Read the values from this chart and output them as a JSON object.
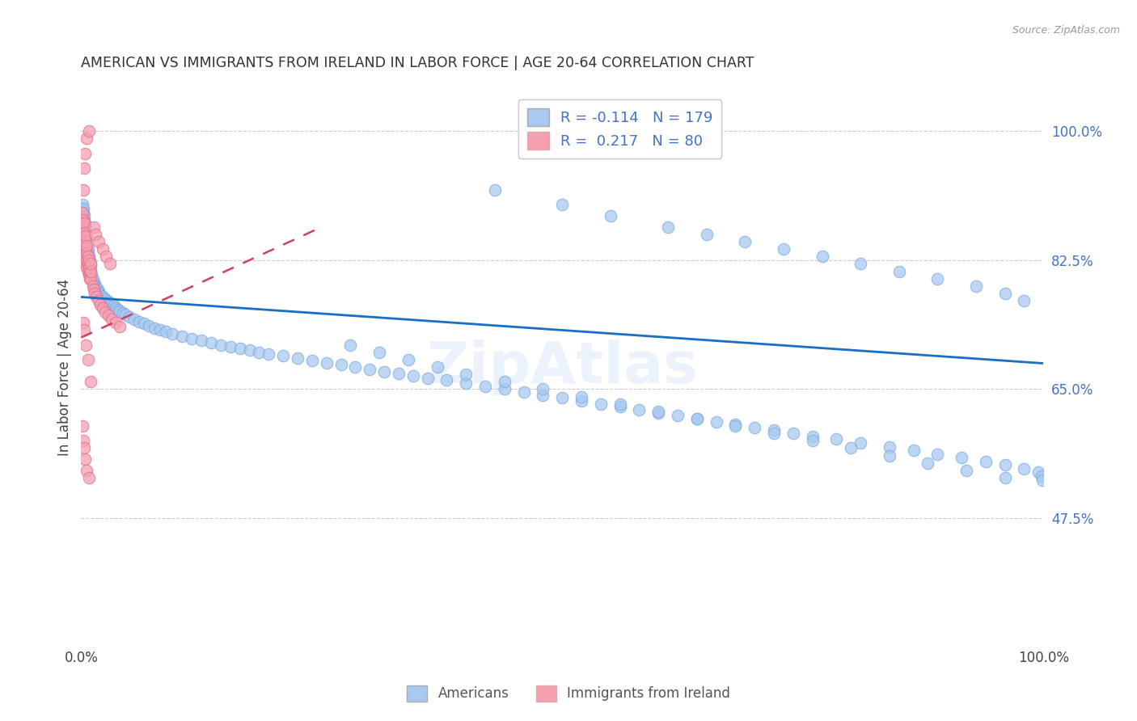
{
  "title": "AMERICAN VS IMMIGRANTS FROM IRELAND IN LABOR FORCE | AGE 20-64 CORRELATION CHART",
  "source": "Source: ZipAtlas.com",
  "ylabel": "In Labor Force | Age 20-64",
  "xlim": [
    0.0,
    1.0
  ],
  "ylim": [
    0.3,
    1.06
  ],
  "yticks": [
    0.475,
    0.65,
    0.825,
    1.0
  ],
  "ytick_labels": [
    "47.5%",
    "65.0%",
    "82.5%",
    "100.0%"
  ],
  "xtick_labels": [
    "0.0%",
    "100.0%"
  ],
  "R_american": -0.114,
  "N_american": 179,
  "R_ireland": 0.217,
  "N_ireland": 80,
  "american_color": "#a8c8f0",
  "ireland_color": "#f4a0b0",
  "trend_american_color": "#1a6fc4",
  "trend_ireland_color": "#d04060",
  "watermark": "ZipAtlas",
  "trend_american_x0": 0.0,
  "trend_american_y0": 0.775,
  "trend_american_x1": 1.0,
  "trend_american_y1": 0.685,
  "trend_ireland_x0": 0.0,
  "trend_ireland_y0": 0.72,
  "trend_ireland_x1": 0.25,
  "trend_ireland_y1": 0.87,
  "american_scatter_x": [
    0.001,
    0.001,
    0.001,
    0.001,
    0.001,
    0.001,
    0.001,
    0.001,
    0.001,
    0.001,
    0.002,
    0.002,
    0.002,
    0.002,
    0.002,
    0.002,
    0.002,
    0.002,
    0.002,
    0.003,
    0.003,
    0.003,
    0.003,
    0.003,
    0.003,
    0.003,
    0.003,
    0.004,
    0.004,
    0.004,
    0.004,
    0.004,
    0.004,
    0.004,
    0.005,
    0.005,
    0.005,
    0.005,
    0.005,
    0.005,
    0.006,
    0.006,
    0.006,
    0.006,
    0.006,
    0.007,
    0.007,
    0.007,
    0.007,
    0.007,
    0.008,
    0.008,
    0.008,
    0.008,
    0.009,
    0.009,
    0.009,
    0.009,
    0.01,
    0.01,
    0.01,
    0.011,
    0.012,
    0.013,
    0.014,
    0.015,
    0.016,
    0.017,
    0.018,
    0.019,
    0.02,
    0.022,
    0.024,
    0.026,
    0.028,
    0.03,
    0.032,
    0.034,
    0.036,
    0.038,
    0.04,
    0.043,
    0.046,
    0.05,
    0.055,
    0.06,
    0.065,
    0.07,
    0.076,
    0.082,
    0.088,
    0.095,
    0.105,
    0.115,
    0.125,
    0.135,
    0.145,
    0.155,
    0.165,
    0.175,
    0.185,
    0.195,
    0.21,
    0.225,
    0.24,
    0.255,
    0.27,
    0.285,
    0.3,
    0.315,
    0.33,
    0.345,
    0.36,
    0.38,
    0.4,
    0.42,
    0.44,
    0.46,
    0.48,
    0.5,
    0.52,
    0.54,
    0.56,
    0.58,
    0.6,
    0.62,
    0.64,
    0.66,
    0.68,
    0.7,
    0.72,
    0.74,
    0.76,
    0.785,
    0.81,
    0.84,
    0.865,
    0.89,
    0.915,
    0.94,
    0.96,
    0.98,
    0.995,
    0.998,
    0.999,
    0.43,
    0.5,
    0.55,
    0.61,
    0.65,
    0.69,
    0.73,
    0.77,
    0.81,
    0.85,
    0.89,
    0.93,
    0.96,
    0.98,
    0.28,
    0.31,
    0.34,
    0.37,
    0.4,
    0.44,
    0.48,
    0.52,
    0.56,
    0.6,
    0.64,
    0.68,
    0.72,
    0.76,
    0.8,
    0.84,
    0.88,
    0.92,
    0.96
  ],
  "american_scatter_y": [
    0.855,
    0.86,
    0.865,
    0.87,
    0.875,
    0.88,
    0.885,
    0.89,
    0.895,
    0.9,
    0.855,
    0.86,
    0.865,
    0.87,
    0.875,
    0.88,
    0.885,
    0.89,
    0.895,
    0.84,
    0.845,
    0.855,
    0.86,
    0.865,
    0.875,
    0.88,
    0.885,
    0.835,
    0.84,
    0.845,
    0.855,
    0.86,
    0.87,
    0.875,
    0.83,
    0.835,
    0.84,
    0.845,
    0.85,
    0.855,
    0.825,
    0.83,
    0.835,
    0.84,
    0.845,
    0.82,
    0.825,
    0.83,
    0.835,
    0.84,
    0.815,
    0.82,
    0.825,
    0.83,
    0.81,
    0.815,
    0.82,
    0.825,
    0.808,
    0.812,
    0.818,
    0.805,
    0.8,
    0.795,
    0.792,
    0.79,
    0.788,
    0.785,
    0.782,
    0.78,
    0.778,
    0.775,
    0.773,
    0.771,
    0.769,
    0.767,
    0.765,
    0.763,
    0.76,
    0.758,
    0.756,
    0.754,
    0.751,
    0.748,
    0.745,
    0.742,
    0.739,
    0.736,
    0.733,
    0.73,
    0.728,
    0.725,
    0.722,
    0.719,
    0.716,
    0.713,
    0.71,
    0.708,
    0.705,
    0.703,
    0.7,
    0.698,
    0.695,
    0.692,
    0.689,
    0.686,
    0.683,
    0.68,
    0.677,
    0.674,
    0.671,
    0.668,
    0.665,
    0.662,
    0.658,
    0.654,
    0.65,
    0.646,
    0.642,
    0.638,
    0.634,
    0.63,
    0.626,
    0.622,
    0.618,
    0.614,
    0.61,
    0.606,
    0.602,
    0.598,
    0.594,
    0.59,
    0.586,
    0.582,
    0.577,
    0.572,
    0.567,
    0.562,
    0.557,
    0.552,
    0.547,
    0.542,
    0.537,
    0.532,
    0.527,
    0.92,
    0.9,
    0.885,
    0.87,
    0.86,
    0.85,
    0.84,
    0.83,
    0.82,
    0.81,
    0.8,
    0.79,
    0.78,
    0.77,
    0.71,
    0.7,
    0.69,
    0.68,
    0.67,
    0.66,
    0.65,
    0.64,
    0.63,
    0.62,
    0.61,
    0.6,
    0.59,
    0.58,
    0.57,
    0.56,
    0.55,
    0.54,
    0.53
  ],
  "ireland_scatter_x": [
    0.001,
    0.001,
    0.001,
    0.001,
    0.001,
    0.001,
    0.002,
    0.002,
    0.002,
    0.002,
    0.002,
    0.002,
    0.002,
    0.003,
    0.003,
    0.003,
    0.003,
    0.003,
    0.003,
    0.003,
    0.004,
    0.004,
    0.004,
    0.004,
    0.004,
    0.005,
    0.005,
    0.005,
    0.005,
    0.005,
    0.006,
    0.006,
    0.006,
    0.006,
    0.007,
    0.007,
    0.007,
    0.008,
    0.008,
    0.008,
    0.009,
    0.009,
    0.01,
    0.01,
    0.01,
    0.012,
    0.013,
    0.014,
    0.016,
    0.018,
    0.02,
    0.022,
    0.025,
    0.028,
    0.032,
    0.036,
    0.04,
    0.013,
    0.015,
    0.018,
    0.022,
    0.026,
    0.03,
    0.002,
    0.003,
    0.005,
    0.007,
    0.01,
    0.001,
    0.002,
    0.003,
    0.004,
    0.006,
    0.008,
    0.002,
    0.003,
    0.004,
    0.006,
    0.008
  ],
  "ireland_scatter_y": [
    0.84,
    0.85,
    0.86,
    0.87,
    0.88,
    0.89,
    0.835,
    0.845,
    0.855,
    0.862,
    0.868,
    0.874,
    0.88,
    0.83,
    0.84,
    0.848,
    0.855,
    0.862,
    0.868,
    0.875,
    0.825,
    0.835,
    0.845,
    0.855,
    0.862,
    0.82,
    0.83,
    0.84,
    0.85,
    0.858,
    0.815,
    0.825,
    0.835,
    0.845,
    0.81,
    0.82,
    0.83,
    0.805,
    0.815,
    0.825,
    0.8,
    0.81,
    0.8,
    0.81,
    0.82,
    0.79,
    0.785,
    0.78,
    0.775,
    0.77,
    0.765,
    0.76,
    0.755,
    0.75,
    0.745,
    0.74,
    0.735,
    0.87,
    0.86,
    0.85,
    0.84,
    0.83,
    0.82,
    0.74,
    0.73,
    0.71,
    0.69,
    0.66,
    0.6,
    0.58,
    0.57,
    0.555,
    0.54,
    0.53,
    0.92,
    0.95,
    0.97,
    0.99,
    1.0
  ]
}
